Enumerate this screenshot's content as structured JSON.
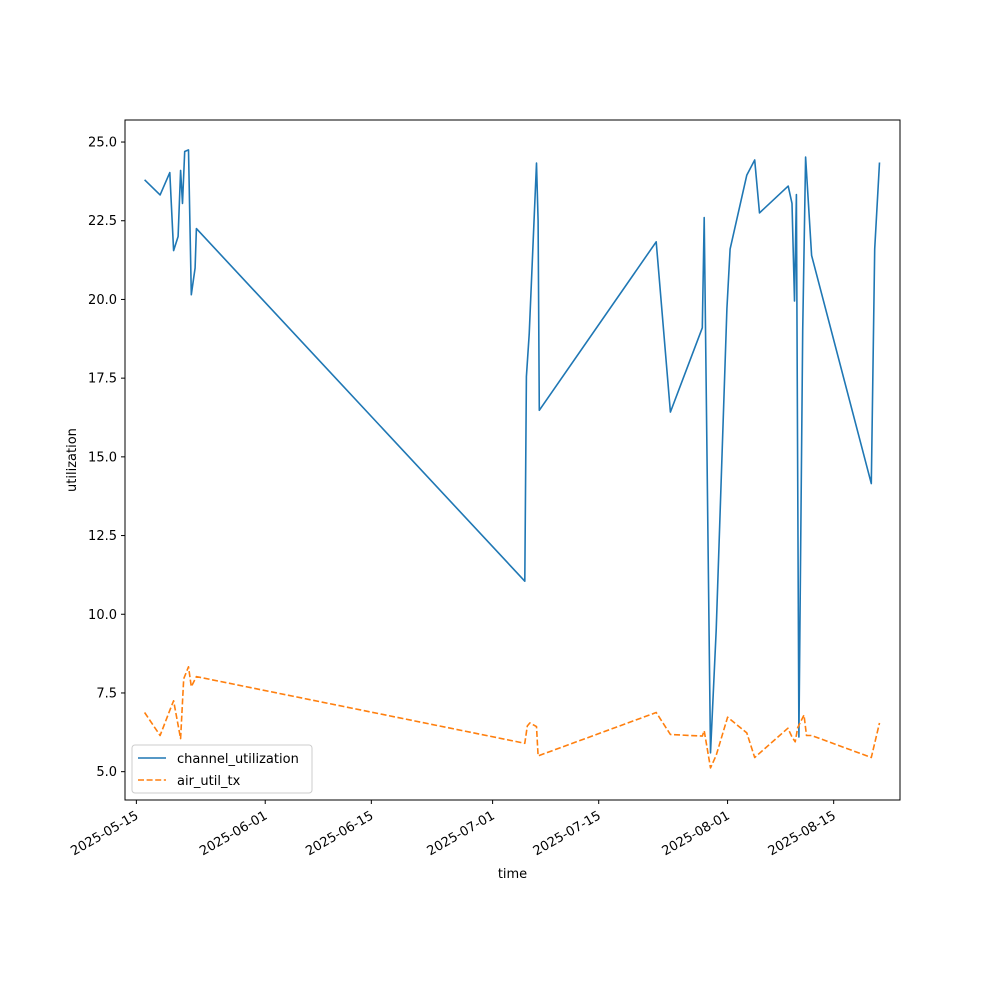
{
  "chart_data": {
    "type": "line",
    "title": "",
    "xlabel": "time",
    "ylabel": "utilization",
    "x_type": "date",
    "xlim": [
      "2025-05-13T12:00",
      "2025-08-23T18:00"
    ],
    "ylim": [
      4.1,
      25.7
    ],
    "y_ticks": [
      5.0,
      7.5,
      10.0,
      12.5,
      15.0,
      17.5,
      20.0,
      22.5,
      25.0
    ],
    "x_ticks": [
      "2025-05-15",
      "2025-06-01",
      "2025-06-15",
      "2025-07-01",
      "2025-07-15",
      "2025-08-01",
      "2025-08-15"
    ],
    "grid": false,
    "legend": "lower-left",
    "series": [
      {
        "name": "channel_utilization",
        "color": "#1f77b4",
        "style": "solid",
        "points": [
          [
            "2025-05-16T02:00",
            23.8
          ],
          [
            "2025-05-18T03:00",
            23.32
          ],
          [
            "2025-05-19T10:00",
            24.03
          ],
          [
            "2025-05-19T22:00",
            21.55
          ],
          [
            "2025-05-20T12:00",
            22.0
          ],
          [
            "2025-05-20T20:00",
            24.1
          ],
          [
            "2025-05-21T02:00",
            23.05
          ],
          [
            "2025-05-21T09:00",
            24.7
          ],
          [
            "2025-05-21T21:00",
            24.75
          ],
          [
            "2025-05-22T06:00",
            20.15
          ],
          [
            "2025-05-22T18:00",
            21.0
          ],
          [
            "2025-05-22T22:00",
            22.25
          ],
          [
            "2025-07-05T06:00",
            11.05
          ],
          [
            "2025-07-05T11:00",
            17.55
          ],
          [
            "2025-07-05T20:00",
            18.9
          ],
          [
            "2025-07-06T19:00",
            24.33
          ],
          [
            "2025-07-07T00:00",
            22.5
          ],
          [
            "2025-07-07T04:00",
            16.48
          ],
          [
            "2025-07-22T14:00",
            21.83
          ],
          [
            "2025-07-24T11:00",
            16.42
          ],
          [
            "2025-07-28T16:00",
            19.1
          ],
          [
            "2025-07-28T22:00",
            22.6
          ],
          [
            "2025-07-29T18:00",
            5.6
          ],
          [
            "2025-07-30T12:00",
            9.5
          ],
          [
            "2025-07-31T22:00",
            19.7
          ],
          [
            "2025-08-01T08:00",
            21.6
          ],
          [
            "2025-08-03T13:00",
            23.95
          ],
          [
            "2025-08-04T14:00",
            24.43
          ],
          [
            "2025-08-05T05:00",
            22.75
          ],
          [
            "2025-08-09T00:00",
            23.6
          ],
          [
            "2025-08-09T12:00",
            23.05
          ],
          [
            "2025-08-09T20:00",
            19.95
          ],
          [
            "2025-08-10T02:00",
            23.33
          ],
          [
            "2025-08-10T10:00",
            6.1
          ],
          [
            "2025-08-10T22:00",
            19.0
          ],
          [
            "2025-08-11T07:00",
            24.52
          ],
          [
            "2025-08-12T02:00",
            21.4
          ],
          [
            "2025-08-19T23:00",
            14.15
          ],
          [
            "2025-08-20T10:00",
            21.6
          ],
          [
            "2025-08-21T01:00",
            24.35
          ]
        ]
      },
      {
        "name": "air_util_tx",
        "color": "#ff7f0e",
        "style": "dashed",
        "points": [
          [
            "2025-05-16T02:00",
            6.88
          ],
          [
            "2025-05-18T03:00",
            6.15
          ],
          [
            "2025-05-19T10:00",
            6.95
          ],
          [
            "2025-05-19T22:00",
            7.25
          ],
          [
            "2025-05-20T20:00",
            6.05
          ],
          [
            "2025-05-21T06:00",
            7.95
          ],
          [
            "2025-05-21T21:00",
            8.33
          ],
          [
            "2025-05-22T06:00",
            7.7
          ],
          [
            "2025-05-22T22:00",
            8.02
          ],
          [
            "2025-07-05T06:00",
            5.9
          ],
          [
            "2025-07-05T14:00",
            6.45
          ],
          [
            "2025-07-05T22:00",
            6.55
          ],
          [
            "2025-07-06T19:00",
            6.43
          ],
          [
            "2025-07-07T00:00",
            5.5
          ],
          [
            "2025-07-22T14:00",
            6.88
          ],
          [
            "2025-07-24T11:00",
            6.18
          ],
          [
            "2025-07-28T16:00",
            6.13
          ],
          [
            "2025-07-28T22:00",
            6.3
          ],
          [
            "2025-07-29T18:00",
            5.12
          ],
          [
            "2025-07-30T12:00",
            5.52
          ],
          [
            "2025-08-01T00:00",
            6.73
          ],
          [
            "2025-08-03T13:00",
            6.23
          ],
          [
            "2025-08-04T14:00",
            5.45
          ],
          [
            "2025-08-08T23:00",
            6.38
          ],
          [
            "2025-08-09T12:00",
            6.1
          ],
          [
            "2025-08-09T22:00",
            5.95
          ],
          [
            "2025-08-10T06:00",
            6.4
          ],
          [
            "2025-08-11T02:00",
            6.8
          ],
          [
            "2025-08-11T10:00",
            6.15
          ],
          [
            "2025-08-12T02:00",
            6.15
          ],
          [
            "2025-08-19T23:00",
            5.45
          ],
          [
            "2025-08-21T01:00",
            6.55
          ]
        ]
      }
    ]
  }
}
